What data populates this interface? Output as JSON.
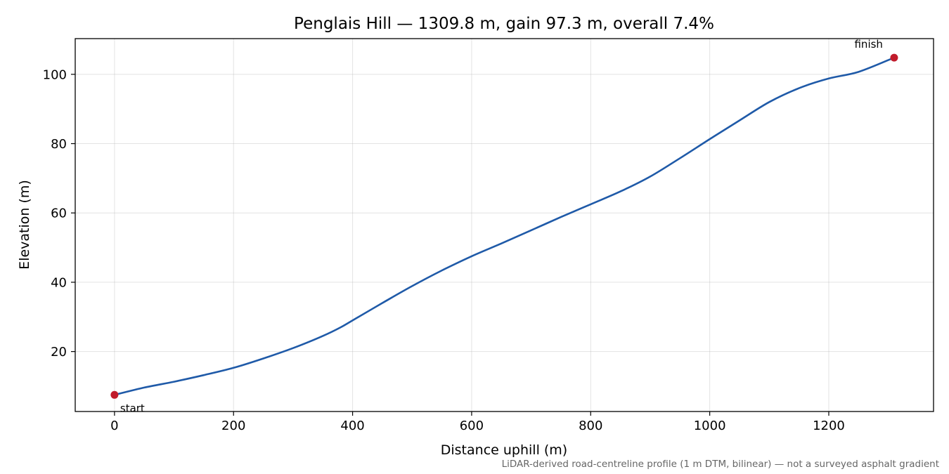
{
  "chart_data": {
    "type": "line",
    "title": "Penglais Hill — 1309.8 m, gain 97.3 m, overall 7.4%",
    "xlabel": "Distance uphill (m)",
    "ylabel": "Elevation (m)",
    "xlim": [
      -66,
      1376
    ],
    "ylim": [
      2.7,
      110.3
    ],
    "xticks": [
      0,
      200,
      400,
      600,
      800,
      1000,
      1200
    ],
    "yticks": [
      20,
      40,
      60,
      80,
      100
    ],
    "grid": true,
    "series": [
      {
        "color": "#1f5aa8",
        "x": [
          0,
          50,
          100,
          150,
          200,
          250,
          300,
          350,
          380,
          400,
          450,
          500,
          550,
          600,
          650,
          700,
          750,
          800,
          850,
          900,
          950,
          1000,
          1050,
          1100,
          1150,
          1200,
          1250,
          1309.8
        ],
        "y": [
          7.5,
          9.6,
          11.3,
          13.2,
          15.3,
          18.0,
          21.0,
          24.5,
          27.0,
          29.0,
          34.0,
          38.9,
          43.4,
          47.5,
          51.2,
          55.0,
          58.8,
          62.5,
          66.2,
          70.5,
          75.8,
          81.3,
          86.7,
          92.0,
          96.0,
          98.8,
          100.7,
          104.8
        ]
      }
    ],
    "points": [
      {
        "label": "start",
        "x": 0,
        "y": 7.5,
        "color": "#c11b2b"
      },
      {
        "label": "finish",
        "x": 1309.8,
        "y": 104.8,
        "color": "#c11b2b"
      }
    ],
    "caption": "LiDAR-derived road-centreline profile (1 m DTM, bilinear) — not a surveyed asphalt gradient"
  }
}
